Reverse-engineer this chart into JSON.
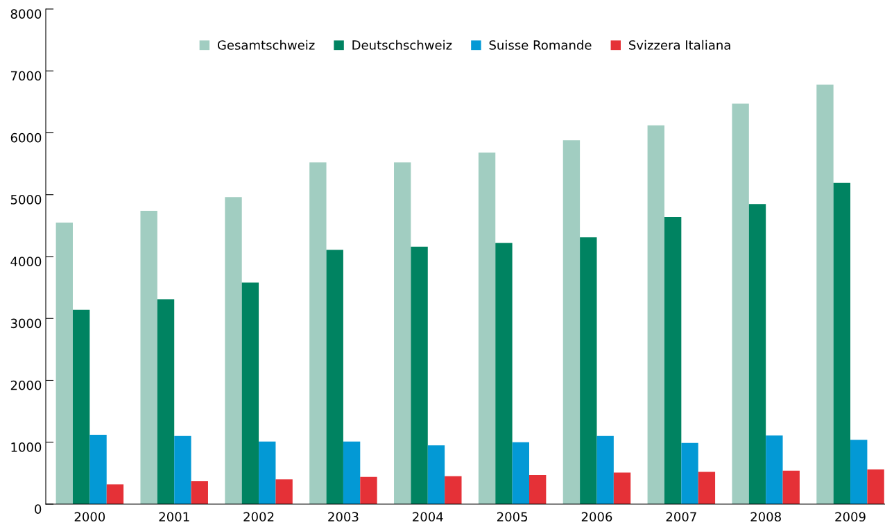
{
  "chart_data": {
    "type": "bar",
    "categories": [
      "2000",
      "2001",
      "2002",
      "2003",
      "2004",
      "2005",
      "2006",
      "2007",
      "2008",
      "2009"
    ],
    "series": [
      {
        "name": "Gesamtschweiz",
        "color": "#a1cdc1",
        "values": [
          4550,
          4740,
          4960,
          5520,
          5520,
          5680,
          5880,
          6120,
          6470,
          6780
        ]
      },
      {
        "name": "Deutschschweiz",
        "color": "#008361",
        "values": [
          3140,
          3310,
          3580,
          4110,
          4160,
          4220,
          4310,
          4640,
          4850,
          5190
        ]
      },
      {
        "name": "Suisse Romande",
        "color": "#0399d5",
        "values": [
          1120,
          1100,
          1010,
          1010,
          950,
          1000,
          1100,
          990,
          1110,
          1040
        ]
      },
      {
        "name": "Svizzera Italiana",
        "color": "#e53137",
        "values": [
          320,
          370,
          400,
          440,
          450,
          470,
          510,
          520,
          540,
          560
        ]
      }
    ],
    "ylim": [
      0,
      8000
    ],
    "yticks": [
      0,
      1000,
      2000,
      3000,
      4000,
      5000,
      6000,
      7000,
      8000
    ],
    "grid": false,
    "legend": "top"
  }
}
